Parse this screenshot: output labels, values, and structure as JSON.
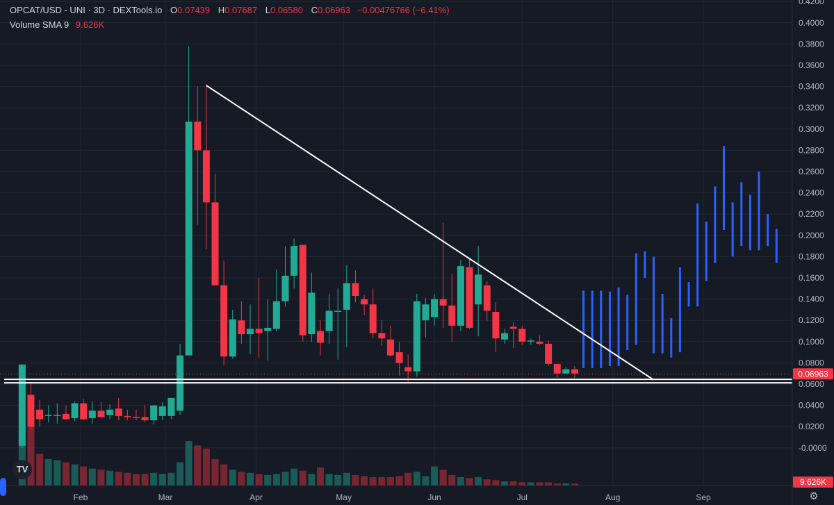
{
  "legend": {
    "symbol": "OPCAT/USD - UNI · 3D · DEXTools.io",
    "o_label": "O",
    "o_value": "0.07439",
    "h_label": "H",
    "h_value": "0.07687",
    "l_label": "L",
    "l_value": "0.06580",
    "c_label": "C",
    "c_value": "0.06963",
    "change": "−0.00476766 (−6.41%)",
    "volume_label": "Volume SMA 9",
    "volume_value": "9.626K"
  },
  "price_badge": "0.06963",
  "volume_badge": "9.626K",
  "logo_text": "TV",
  "colors": {
    "background": "#161A25",
    "up": "#22AB94",
    "down": "#F23645",
    "projection": "#2962FF",
    "trendline": "#FFFFFF",
    "grid": "#232733",
    "axis_text": "#B2B5BE"
  },
  "chart_data": {
    "type": "candlestick",
    "title": "OPCAT/USD - UNI · 3D · DEXTools.io",
    "interval": "3D",
    "y_ticks": [
      "0.4200",
      "0.4000",
      "0.3800",
      "0.3600",
      "0.3400",
      "0.3200",
      "0.3000",
      "0.2800",
      "0.2600",
      "0.2400",
      "0.2200",
      "0.2000",
      "0.1800",
      "0.1600",
      "0.1400",
      "0.1200",
      "0.1000",
      "0.0800",
      "0.0600",
      "0.0400",
      "0.0200",
      "-0.0000"
    ],
    "ylim": [
      -0.005,
      0.425
    ],
    "x_ticks": [
      {
        "label": "Feb",
        "date": "2024-02-01"
      },
      {
        "label": "Mar",
        "date": "2024-03-01"
      },
      {
        "label": "Apr",
        "date": "2024-04-01"
      },
      {
        "label": "May",
        "date": "2024-05-01"
      },
      {
        "label": "Jun",
        "date": "2024-06-01"
      },
      {
        "label": "Jul",
        "date": "2024-07-01"
      },
      {
        "label": "Aug",
        "date": "2024-08-01"
      },
      {
        "label": "Sep",
        "date": "2024-09-01"
      }
    ],
    "last_price": 0.06963,
    "grid": true,
    "candles": [
      {
        "date": "2024-01-12",
        "open": 0.002,
        "high": 0.078,
        "low": 0.0,
        "close": 0.078
      },
      {
        "date": "2024-01-15",
        "open": 0.05,
        "high": 0.062,
        "low": 0.018,
        "close": 0.02
      },
      {
        "date": "2024-01-18",
        "open": 0.036,
        "high": 0.045,
        "low": 0.02,
        "close": 0.027
      },
      {
        "date": "2024-01-21",
        "open": 0.03,
        "high": 0.04,
        "low": 0.024,
        "close": 0.031
      },
      {
        "date": "2024-01-24",
        "open": 0.03,
        "high": 0.042,
        "low": 0.023,
        "close": 0.031
      },
      {
        "date": "2024-01-27",
        "open": 0.032,
        "high": 0.04,
        "low": 0.026,
        "close": 0.027
      },
      {
        "date": "2024-01-30",
        "open": 0.028,
        "high": 0.044,
        "low": 0.025,
        "close": 0.042
      },
      {
        "date": "2024-02-02",
        "open": 0.042,
        "high": 0.046,
        "low": 0.026,
        "close": 0.027
      },
      {
        "date": "2024-02-05",
        "open": 0.028,
        "high": 0.044,
        "low": 0.023,
        "close": 0.035
      },
      {
        "date": "2024-02-08",
        "open": 0.035,
        "high": 0.043,
        "low": 0.028,
        "close": 0.029
      },
      {
        "date": "2024-02-11",
        "open": 0.031,
        "high": 0.041,
        "low": 0.027,
        "close": 0.036
      },
      {
        "date": "2024-02-14",
        "open": 0.037,
        "high": 0.047,
        "low": 0.026,
        "close": 0.03
      },
      {
        "date": "2024-02-17",
        "open": 0.03,
        "high": 0.036,
        "low": 0.026,
        "close": 0.029
      },
      {
        "date": "2024-02-20",
        "open": 0.029,
        "high": 0.036,
        "low": 0.026,
        "close": 0.028
      },
      {
        "date": "2024-02-23",
        "open": 0.029,
        "high": 0.04,
        "low": 0.024,
        "close": 0.026
      },
      {
        "date": "2024-02-26",
        "open": 0.026,
        "high": 0.036,
        "low": 0.022,
        "close": 0.04
      },
      {
        "date": "2024-02-29",
        "open": 0.03,
        "high": 0.043,
        "low": 0.026,
        "close": 0.039
      },
      {
        "date": "2024-03-03",
        "open": 0.03,
        "high": 0.046,
        "low": 0.027,
        "close": 0.047
      },
      {
        "date": "2024-03-06",
        "open": 0.035,
        "high": 0.098,
        "low": 0.031,
        "close": 0.087
      },
      {
        "date": "2024-03-09",
        "open": 0.087,
        "high": 0.378,
        "low": 0.087,
        "close": 0.307
      },
      {
        "date": "2024-03-12",
        "open": 0.307,
        "high": 0.34,
        "low": 0.21,
        "close": 0.28
      },
      {
        "date": "2024-03-15",
        "open": 0.28,
        "high": 0.342,
        "low": 0.187,
        "close": 0.231
      },
      {
        "date": "2024-03-18",
        "open": 0.231,
        "high": 0.258,
        "low": 0.155,
        "close": 0.153
      },
      {
        "date": "2024-03-21",
        "open": 0.153,
        "high": 0.176,
        "low": 0.078,
        "close": 0.086
      },
      {
        "date": "2024-03-24",
        "open": 0.086,
        "high": 0.13,
        "low": 0.084,
        "close": 0.121
      },
      {
        "date": "2024-03-27",
        "open": 0.12,
        "high": 0.138,
        "low": 0.098,
        "close": 0.107
      },
      {
        "date": "2024-03-30",
        "open": 0.107,
        "high": 0.135,
        "low": 0.088,
        "close": 0.112
      },
      {
        "date": "2024-04-02",
        "open": 0.112,
        "high": 0.16,
        "low": 0.085,
        "close": 0.108
      },
      {
        "date": "2024-04-05",
        "open": 0.11,
        "high": 0.14,
        "low": 0.082,
        "close": 0.113
      },
      {
        "date": "2024-04-08",
        "open": 0.112,
        "high": 0.168,
        "low": 0.11,
        "close": 0.138
      },
      {
        "date": "2024-04-11",
        "open": 0.138,
        "high": 0.19,
        "low": 0.133,
        "close": 0.162
      },
      {
        "date": "2024-04-14",
        "open": 0.162,
        "high": 0.197,
        "low": 0.15,
        "close": 0.19
      },
      {
        "date": "2024-04-17",
        "open": 0.191,
        "high": 0.19,
        "low": 0.1,
        "close": 0.106
      },
      {
        "date": "2024-04-20",
        "open": 0.107,
        "high": 0.165,
        "low": 0.1,
        "close": 0.146
      },
      {
        "date": "2024-04-23",
        "open": 0.11,
        "high": 0.12,
        "low": 0.087,
        "close": 0.099
      },
      {
        "date": "2024-04-26",
        "open": 0.11,
        "high": 0.145,
        "low": 0.098,
        "close": 0.129
      },
      {
        "date": "2024-04-29",
        "open": 0.128,
        "high": 0.15,
        "low": 0.083,
        "close": 0.129
      },
      {
        "date": "2024-05-02",
        "open": 0.13,
        "high": 0.172,
        "low": 0.095,
        "close": 0.155
      },
      {
        "date": "2024-05-05",
        "open": 0.155,
        "high": 0.167,
        "low": 0.137,
        "close": 0.143
      },
      {
        "date": "2024-05-08",
        "open": 0.14,
        "high": 0.144,
        "low": 0.125,
        "close": 0.135
      },
      {
        "date": "2024-05-11",
        "open": 0.135,
        "high": 0.15,
        "low": 0.103,
        "close": 0.108
      },
      {
        "date": "2024-05-14",
        "open": 0.108,
        "high": 0.12,
        "low": 0.096,
        "close": 0.103
      },
      {
        "date": "2024-05-17",
        "open": 0.102,
        "high": 0.115,
        "low": 0.086,
        "close": 0.087
      },
      {
        "date": "2024-05-20",
        "open": 0.09,
        "high": 0.1,
        "low": 0.068,
        "close": 0.08
      },
      {
        "date": "2024-05-23",
        "open": 0.076,
        "high": 0.088,
        "low": 0.062,
        "close": 0.072
      },
      {
        "date": "2024-05-26",
        "open": 0.072,
        "high": 0.145,
        "low": 0.067,
        "close": 0.138
      },
      {
        "date": "2024-05-29",
        "open": 0.12,
        "high": 0.141,
        "low": 0.104,
        "close": 0.135
      },
      {
        "date": "2024-06-01",
        "open": 0.123,
        "high": 0.145,
        "low": 0.115,
        "close": 0.14
      },
      {
        "date": "2024-06-04",
        "open": 0.14,
        "high": 0.212,
        "low": 0.113,
        "close": 0.134
      },
      {
        "date": "2024-06-07",
        "open": 0.134,
        "high": 0.164,
        "low": 0.1,
        "close": 0.115
      },
      {
        "date": "2024-06-10",
        "open": 0.115,
        "high": 0.177,
        "low": 0.11,
        "close": 0.171
      },
      {
        "date": "2024-06-13",
        "open": 0.17,
        "high": 0.179,
        "low": 0.112,
        "close": 0.113
      },
      {
        "date": "2024-06-16",
        "open": 0.135,
        "high": 0.19,
        "low": 0.105,
        "close": 0.163
      },
      {
        "date": "2024-06-19",
        "open": 0.153,
        "high": 0.157,
        "low": 0.119,
        "close": 0.129
      },
      {
        "date": "2024-06-22",
        "open": 0.128,
        "high": 0.137,
        "low": 0.09,
        "close": 0.103
      },
      {
        "date": "2024-06-25",
        "open": 0.102,
        "high": 0.112,
        "low": 0.098,
        "close": 0.108
      },
      {
        "date": "2024-06-28",
        "open": 0.114,
        "high": 0.118,
        "low": 0.094,
        "close": 0.112
      },
      {
        "date": "2024-07-01",
        "open": 0.112,
        "high": 0.115,
        "low": 0.097,
        "close": 0.1
      },
      {
        "date": "2024-07-04",
        "open": 0.1,
        "high": 0.103,
        "low": 0.097,
        "close": 0.101
      },
      {
        "date": "2024-07-07",
        "open": 0.1,
        "high": 0.106,
        "low": 0.097,
        "close": 0.098
      },
      {
        "date": "2024-07-10",
        "open": 0.098,
        "high": 0.101,
        "low": 0.077,
        "close": 0.079
      },
      {
        "date": "2024-07-13",
        "open": 0.079,
        "high": 0.078,
        "low": 0.066,
        "close": 0.07
      },
      {
        "date": "2024-07-16",
        "open": 0.07,
        "high": 0.076,
        "low": 0.07,
        "close": 0.074
      },
      {
        "date": "2024-07-19",
        "open": 0.074,
        "high": 0.077,
        "low": 0.066,
        "close": 0.07
      }
    ],
    "projection_bars": [
      {
        "date": "2024-07-22",
        "high": 0.148,
        "low": 0.075
      },
      {
        "date": "2024-07-25",
        "high": 0.148,
        "low": 0.075
      },
      {
        "date": "2024-07-28",
        "high": 0.148,
        "low": 0.075
      },
      {
        "date": "2024-07-31",
        "high": 0.147,
        "low": 0.077
      },
      {
        "date": "2024-08-03",
        "high": 0.151,
        "low": 0.077
      },
      {
        "date": "2024-08-06",
        "high": 0.144,
        "low": 0.092
      },
      {
        "date": "2024-08-09",
        "high": 0.183,
        "low": 0.097
      },
      {
        "date": "2024-08-12",
        "high": 0.185,
        "low": 0.16
      },
      {
        "date": "2024-08-15",
        "high": 0.18,
        "low": 0.089
      },
      {
        "date": "2024-08-18",
        "high": 0.145,
        "low": 0.089
      },
      {
        "date": "2024-08-21",
        "high": 0.122,
        "low": 0.085
      },
      {
        "date": "2024-08-24",
        "high": 0.17,
        "low": 0.09
      },
      {
        "date": "2024-08-27",
        "high": 0.156,
        "low": 0.133
      },
      {
        "date": "2024-08-30",
        "high": 0.23,
        "low": 0.133
      },
      {
        "date": "2024-09-02",
        "high": 0.213,
        "low": 0.157
      },
      {
        "date": "2024-09-05",
        "high": 0.246,
        "low": 0.174
      },
      {
        "date": "2024-09-08",
        "high": 0.284,
        "low": 0.205
      },
      {
        "date": "2024-09-11",
        "high": 0.231,
        "low": 0.18
      },
      {
        "date": "2024-09-14",
        "high": 0.25,
        "low": 0.19
      },
      {
        "date": "2024-09-17",
        "high": 0.238,
        "low": 0.186
      },
      {
        "date": "2024-09-20",
        "high": 0.26,
        "low": 0.186
      },
      {
        "date": "2024-09-23",
        "high": 0.22,
        "low": 0.19
      },
      {
        "date": "2024-09-26",
        "high": 0.206,
        "low": 0.174
      }
    ],
    "trendline": {
      "from": {
        "date": "2024-03-15",
        "value": 0.341
      },
      "to": {
        "date": "2024-08-15",
        "value": 0.064
      }
    },
    "support_lines": [
      0.0645,
      0.0612
    ],
    "volume": [
      {
        "date": "2024-01-12",
        "value": 115,
        "up": true
      },
      {
        "date": "2024-01-15",
        "value": 58,
        "up": false
      },
      {
        "date": "2024-01-18",
        "value": 30,
        "up": false
      },
      {
        "date": "2024-01-21",
        "value": 25,
        "up": true
      },
      {
        "date": "2024-01-24",
        "value": 24,
        "up": true
      },
      {
        "date": "2024-01-27",
        "value": 22,
        "up": false
      },
      {
        "date": "2024-01-30",
        "value": 20,
        "up": true
      },
      {
        "date": "2024-02-02",
        "value": 18,
        "up": false
      },
      {
        "date": "2024-02-05",
        "value": 16,
        "up": true
      },
      {
        "date": "2024-02-08",
        "value": 15,
        "up": false
      },
      {
        "date": "2024-02-11",
        "value": 14,
        "up": true
      },
      {
        "date": "2024-02-14",
        "value": 13,
        "up": false
      },
      {
        "date": "2024-02-17",
        "value": 12,
        "up": false
      },
      {
        "date": "2024-02-20",
        "value": 11,
        "up": false
      },
      {
        "date": "2024-02-23",
        "value": 11,
        "up": false
      },
      {
        "date": "2024-02-26",
        "value": 12,
        "up": true
      },
      {
        "date": "2024-02-29",
        "value": 11,
        "up": true
      },
      {
        "date": "2024-03-03",
        "value": 12,
        "up": true
      },
      {
        "date": "2024-03-06",
        "value": 22,
        "up": true
      },
      {
        "date": "2024-03-09",
        "value": 42,
        "up": true
      },
      {
        "date": "2024-03-12",
        "value": 38,
        "up": false
      },
      {
        "date": "2024-03-15",
        "value": 35,
        "up": false
      },
      {
        "date": "2024-03-18",
        "value": 25,
        "up": false
      },
      {
        "date": "2024-03-21",
        "value": 20,
        "up": false
      },
      {
        "date": "2024-03-24",
        "value": 15,
        "up": true
      },
      {
        "date": "2024-03-27",
        "value": 13,
        "up": false
      },
      {
        "date": "2024-03-30",
        "value": 12,
        "up": true
      },
      {
        "date": "2024-04-02",
        "value": 11,
        "up": false
      },
      {
        "date": "2024-04-05",
        "value": 10,
        "up": true
      },
      {
        "date": "2024-04-08",
        "value": 11,
        "up": true
      },
      {
        "date": "2024-04-11",
        "value": 13,
        "up": true
      },
      {
        "date": "2024-04-14",
        "value": 16,
        "up": true
      },
      {
        "date": "2024-04-17",
        "value": 14,
        "up": false
      },
      {
        "date": "2024-04-20",
        "value": 11,
        "up": true
      },
      {
        "date": "2024-04-23",
        "value": 17,
        "up": false
      },
      {
        "date": "2024-04-26",
        "value": 11,
        "up": true
      },
      {
        "date": "2024-04-29",
        "value": 10,
        "up": true
      },
      {
        "date": "2024-05-02",
        "value": 12,
        "up": true
      },
      {
        "date": "2024-05-05",
        "value": 10,
        "up": false
      },
      {
        "date": "2024-05-08",
        "value": 9,
        "up": false
      },
      {
        "date": "2024-05-11",
        "value": 8,
        "up": false
      },
      {
        "date": "2024-05-14",
        "value": 8,
        "up": false
      },
      {
        "date": "2024-05-17",
        "value": 8,
        "up": false
      },
      {
        "date": "2024-05-20",
        "value": 9,
        "up": false
      },
      {
        "date": "2024-05-23",
        "value": 12,
        "up": false
      },
      {
        "date": "2024-05-26",
        "value": 13,
        "up": true
      },
      {
        "date": "2024-05-29",
        "value": 9,
        "up": true
      },
      {
        "date": "2024-06-01",
        "value": 18,
        "up": true
      },
      {
        "date": "2024-06-04",
        "value": 15,
        "up": false
      },
      {
        "date": "2024-06-07",
        "value": 10,
        "up": false
      },
      {
        "date": "2024-06-10",
        "value": 8,
        "up": true
      },
      {
        "date": "2024-06-13",
        "value": 7,
        "up": false
      },
      {
        "date": "2024-06-16",
        "value": 8,
        "up": true
      },
      {
        "date": "2024-06-19",
        "value": 6,
        "up": false
      },
      {
        "date": "2024-06-22",
        "value": 5,
        "up": false
      },
      {
        "date": "2024-06-25",
        "value": 4,
        "up": true
      },
      {
        "date": "2024-06-28",
        "value": 4,
        "up": false
      },
      {
        "date": "2024-07-01",
        "value": 3,
        "up": false
      },
      {
        "date": "2024-07-04",
        "value": 3,
        "up": true
      },
      {
        "date": "2024-07-07",
        "value": 3,
        "up": false
      },
      {
        "date": "2024-07-10",
        "value": 3,
        "up": false
      },
      {
        "date": "2024-07-13",
        "value": 2,
        "up": false
      },
      {
        "date": "2024-07-16",
        "value": 2,
        "up": true
      },
      {
        "date": "2024-07-19",
        "value": 2,
        "up": false
      }
    ]
  }
}
